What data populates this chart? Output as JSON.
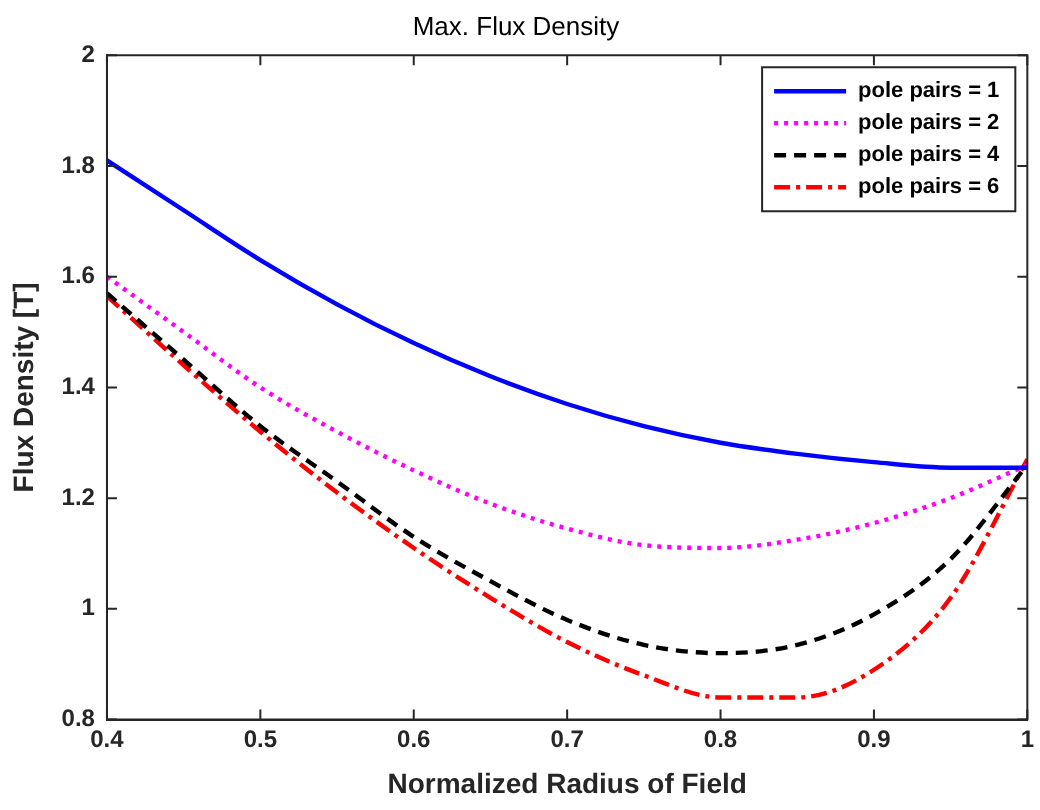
{
  "chart_data": {
    "type": "line",
    "title": "Max. Flux Density",
    "xlabel": "Normalized Radius of Field",
    "ylabel": "Flux Density [T]",
    "x": [
      0.4,
      0.45,
      0.5,
      0.55,
      0.6,
      0.65,
      0.7,
      0.75,
      0.8,
      0.85,
      0.9,
      0.95,
      1.0
    ],
    "series": [
      {
        "name": "pole pairs = 1",
        "color": "#0000ff",
        "line_style": "solid",
        "values": [
          1.81,
          1.72,
          1.63,
          1.55,
          1.48,
          1.42,
          1.37,
          1.33,
          1.3,
          1.28,
          1.265,
          1.255,
          1.255
        ]
      },
      {
        "name": "pole pairs = 2",
        "color": "#ff00ff",
        "line_style": "dotted",
        "values": [
          1.6,
          1.5,
          1.4,
          1.32,
          1.25,
          1.19,
          1.145,
          1.115,
          1.11,
          1.125,
          1.155,
          1.2,
          1.26
        ]
      },
      {
        "name": "pole pairs = 4",
        "color": "#000000",
        "line_style": "dashed",
        "values": [
          1.57,
          1.45,
          1.33,
          1.23,
          1.13,
          1.05,
          0.98,
          0.935,
          0.92,
          0.935,
          0.99,
          1.09,
          1.26
        ]
      },
      {
        "name": "pole pairs = 6",
        "color": "#ff0000",
        "line_style": "dashdot",
        "values": [
          1.565,
          1.44,
          1.32,
          1.21,
          1.11,
          1.02,
          0.94,
          0.88,
          0.84,
          0.84,
          0.89,
          1.02,
          1.27
        ]
      }
    ],
    "xlim": [
      0.4,
      1
    ],
    "xticks": [
      0.4,
      0.5,
      0.6,
      0.7,
      0.8,
      0.9,
      1
    ],
    "ylim": [
      0.8,
      2
    ],
    "yticks": [
      0.8,
      1,
      1.2,
      1.4,
      1.6,
      1.8,
      2
    ],
    "grid": false,
    "legend": "top right",
    "marker": "none"
  }
}
